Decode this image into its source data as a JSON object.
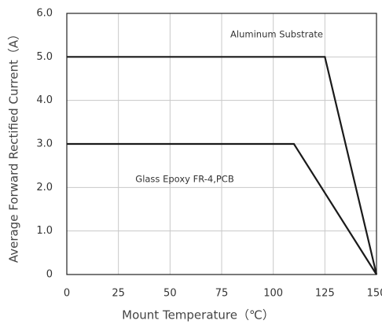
{
  "chart_data": {
    "type": "line",
    "xlabel": "Mount Temperature（℃）",
    "ylabel": "Average Forward Rectified Current（A）",
    "annotations": [
      "Aluminum Substrate",
      "Glass Epoxy FR-4,PCB"
    ],
    "series": [
      {
        "name": "Aluminum Substrate",
        "color": "#1a1a1a",
        "x": [
          0,
          125,
          150
        ],
        "values": [
          5,
          5,
          0
        ]
      },
      {
        "name": "Glass Epoxy FR-4,PCB",
        "color": "#1a1a1a",
        "x": [
          0,
          110,
          150
        ],
        "values": [
          3,
          3,
          0
        ]
      }
    ],
    "xlim": [
      0,
      150
    ],
    "xticks": [
      0,
      25,
      50,
      75,
      100,
      125,
      150
    ],
    "ylim": [
      0,
      6
    ],
    "yticks": [
      0,
      {
        "value": 1,
        "label": "1.0"
      },
      {
        "value": 2,
        "label": "2.0"
      },
      {
        "value": 3,
        "label": "3.0"
      },
      {
        "value": 4,
        "label": "4.0"
      },
      {
        "value": 5,
        "label": "5.0"
      },
      {
        "value": 6,
        "label": "6.0"
      }
    ],
    "grid": true
  }
}
